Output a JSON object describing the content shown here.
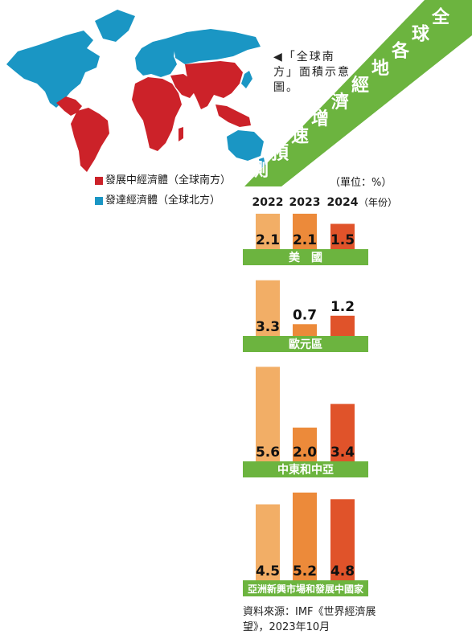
{
  "colors": {
    "developing": "#cc2229",
    "developed": "#1a96c4",
    "ocean": "#ffffff",
    "banner": "#6cb43f",
    "bar_2022": "#f2ae66",
    "bar_2023": "#ec8a3a",
    "bar_2024": "#e0532a"
  },
  "headline": "全球各地經濟增速預測",
  "map_note": "◀「全球南方」面積示意圖。",
  "legend": [
    {
      "label": "發展中經濟體（全球南方）",
      "color_key": "developing"
    },
    {
      "label": "發達經濟體（全球北方）",
      "color_key": "developed"
    }
  ],
  "unit_label": "（單位：%）",
  "source": "資料來源：IMF《世界經濟展望》，2023年10月",
  "chart_data": {
    "type": "bar",
    "unit": "%",
    "x_label": "（年份）",
    "categories": [
      "2022",
      "2023",
      "2024"
    ],
    "groups": [
      {
        "name": "美　國",
        "values": [
          2.1,
          2.1,
          1.5
        ]
      },
      {
        "name": "歐元區",
        "values": [
          3.3,
          0.7,
          1.2
        ]
      },
      {
        "name": "中東和中亞",
        "values": [
          5.6,
          2.0,
          3.4
        ]
      },
      {
        "name": "亞洲新興市場和發展中國家",
        "values": [
          4.5,
          5.2,
          4.8
        ]
      }
    ]
  }
}
